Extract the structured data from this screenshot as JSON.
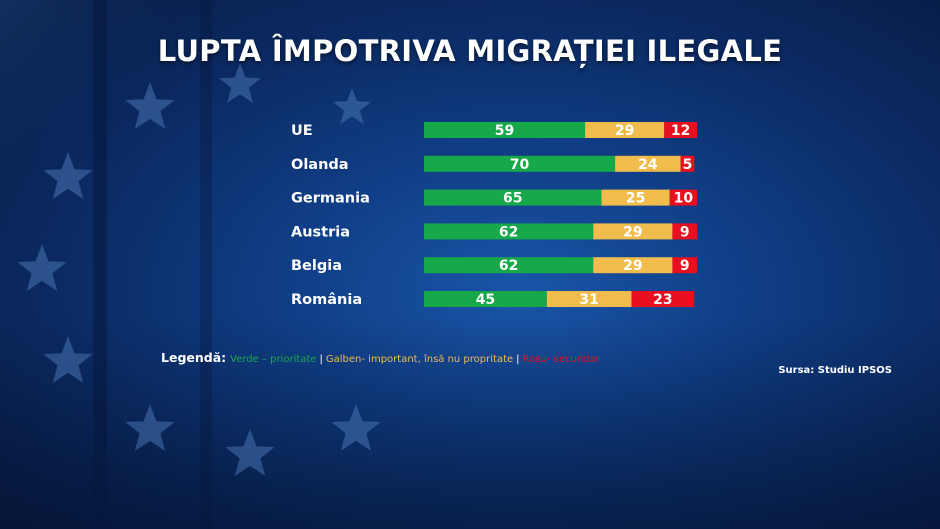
{
  "title": "LUPTA ÎMPOTRIVA MIGRAȚIEI ILEGALE",
  "colors": {
    "green": "#17a84a",
    "yellow": "#f0bc4c",
    "red": "#e8101e"
  },
  "chart_data": {
    "type": "bar",
    "orientation": "horizontal",
    "stacked": true,
    "title": "LUPTA ÎMPOTRIVA MIGRAȚIEI ILEGALE",
    "categories": [
      "UE",
      "Olanda",
      "Germania",
      "Austria",
      "Belgia",
      "România"
    ],
    "series": [
      {
        "color": "#17a84a",
        "values": [
          59,
          70,
          65,
          62,
          62,
          45
        ]
      },
      {
        "color": "#f0bc4c",
        "values": [
          29,
          24,
          25,
          29,
          29,
          31
        ]
      },
      {
        "color": "#e8101e",
        "values": [
          12,
          5,
          10,
          9,
          9,
          23
        ]
      }
    ],
    "xlim": [
      0,
      100
    ],
    "grid": false
  },
  "legend": {
    "title": "Legendă:",
    "items": [
      {
        "text": "Verde – prioritate",
        "color": "#17a84a"
      },
      {
        "text": "Galben- important, însă nu propritate",
        "color": "#f0bc4c"
      },
      {
        "text": "Roșu- secundar",
        "color": "#e8101e"
      }
    ],
    "separator": "|"
  },
  "source": "Sursa: Studiu IPSOS"
}
